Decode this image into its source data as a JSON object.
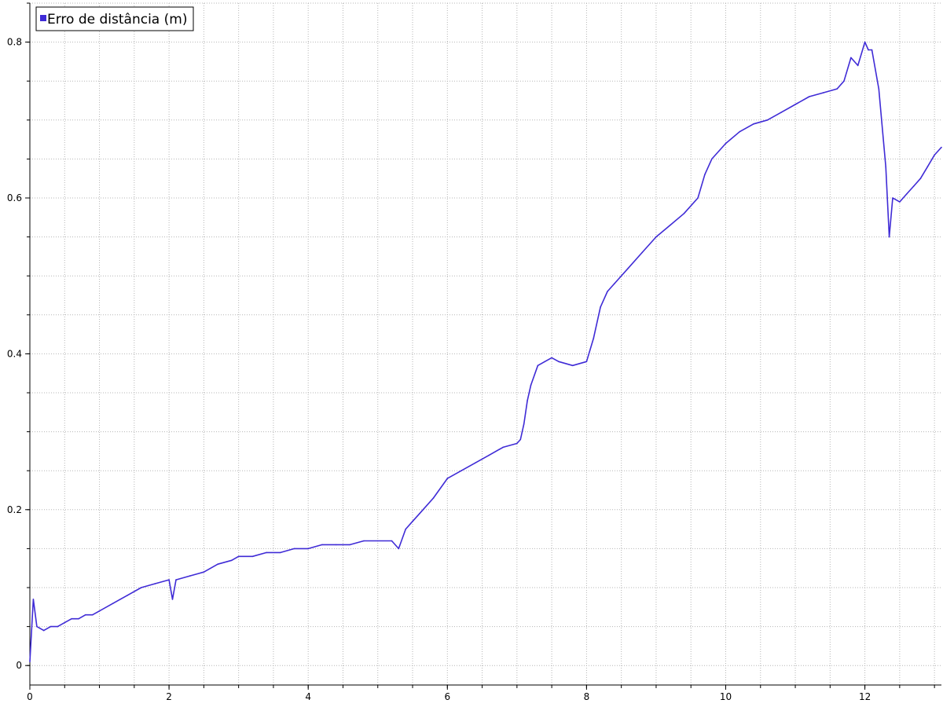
{
  "chart_data": {
    "type": "line",
    "title": "",
    "xlabel": "",
    "ylabel": "",
    "xlim": [
      0,
      13.1
    ],
    "ylim": [
      -0.025,
      0.85
    ],
    "x_ticks": [
      0,
      2,
      4,
      6,
      8,
      10,
      12
    ],
    "x_tick_labels": [
      "0",
      "2",
      "4",
      "6",
      "8",
      "10",
      "12"
    ],
    "y_ticks": [
      0,
      0.2,
      0.4,
      0.6,
      0.8
    ],
    "y_tick_labels": [
      "0",
      "0.2",
      "0.4",
      "0.6",
      "0.8"
    ],
    "grid": true,
    "legend_position": "top-left",
    "series": [
      {
        "name": "Erro de distância (m)",
        "color": "#3f2bd6",
        "x": [
          0,
          0.05,
          0.1,
          0.2,
          0.3,
          0.4,
          0.5,
          0.6,
          0.7,
          0.8,
          0.9,
          1.0,
          1.2,
          1.4,
          1.6,
          1.8,
          2.0,
          2.05,
          2.1,
          2.3,
          2.5,
          2.7,
          2.9,
          3.0,
          3.2,
          3.4,
          3.6,
          3.8,
          4.0,
          4.2,
          4.4,
          4.6,
          4.8,
          5.0,
          5.2,
          5.3,
          5.4,
          5.5,
          5.6,
          5.8,
          6.0,
          6.2,
          6.4,
          6.6,
          6.8,
          7.0,
          7.05,
          7.1,
          7.15,
          7.2,
          7.3,
          7.4,
          7.5,
          7.6,
          7.8,
          8.0,
          8.1,
          8.2,
          8.3,
          8.4,
          8.6,
          8.8,
          9.0,
          9.2,
          9.4,
          9.6,
          9.7,
          9.8,
          10.0,
          10.2,
          10.4,
          10.6,
          10.8,
          11.0,
          11.2,
          11.4,
          11.6,
          11.7,
          11.8,
          11.9,
          12.0,
          12.05,
          12.1,
          12.2,
          12.3,
          12.35,
          12.4,
          12.5,
          12.6,
          12.7,
          12.8,
          12.9,
          13.0,
          13.1
        ],
        "y": [
          0.005,
          0.085,
          0.05,
          0.045,
          0.05,
          0.05,
          0.055,
          0.06,
          0.06,
          0.065,
          0.065,
          0.07,
          0.08,
          0.09,
          0.1,
          0.105,
          0.11,
          0.085,
          0.11,
          0.115,
          0.12,
          0.13,
          0.135,
          0.14,
          0.14,
          0.145,
          0.145,
          0.15,
          0.15,
          0.155,
          0.155,
          0.155,
          0.16,
          0.16,
          0.16,
          0.15,
          0.175,
          0.185,
          0.195,
          0.215,
          0.24,
          0.25,
          0.26,
          0.27,
          0.28,
          0.285,
          0.29,
          0.31,
          0.34,
          0.36,
          0.385,
          0.39,
          0.395,
          0.39,
          0.385,
          0.39,
          0.42,
          0.46,
          0.48,
          0.49,
          0.51,
          0.53,
          0.55,
          0.565,
          0.58,
          0.6,
          0.63,
          0.65,
          0.67,
          0.685,
          0.695,
          0.7,
          0.71,
          0.72,
          0.73,
          0.735,
          0.74,
          0.75,
          0.78,
          0.77,
          0.8,
          0.79,
          0.79,
          0.74,
          0.64,
          0.55,
          0.6,
          0.595,
          0.605,
          0.615,
          0.625,
          0.64,
          0.655,
          0.665
        ]
      }
    ]
  }
}
